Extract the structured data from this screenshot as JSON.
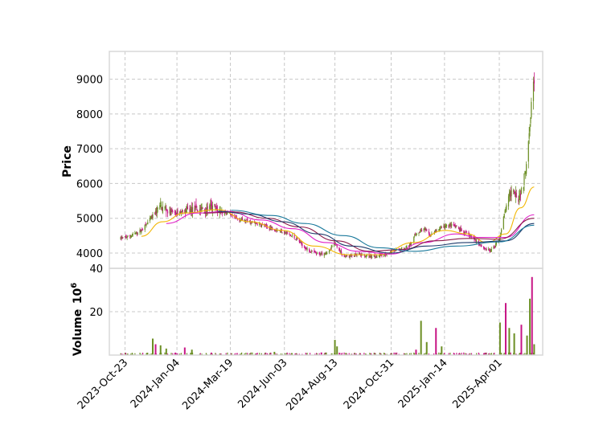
{
  "chart_data": {
    "type": "candlestick",
    "ylabel_price": "Price",
    "ylabel_volume": "Volume",
    "volume_scale_label": "10^6",
    "price_ylim": [
      3560,
      9800
    ],
    "price_yticks": [
      4000,
      5000,
      6000,
      7000,
      8000,
      9000
    ],
    "volume_ylim": [
      0,
      40
    ],
    "volume_yticks": [
      20,
      40
    ],
    "x_start": "2023-10-01",
    "x_end": "2025-06-01",
    "xticks": [
      "2023-Oct-23",
      "2024-Jan-04",
      "2024-Mar-19",
      "2024-Jun-03",
      "2024-Aug-13",
      "2024-Oct-31",
      "2025-Jan-14",
      "2025-Apr-01"
    ],
    "grid": true,
    "colors": {
      "up": "#6b8e23",
      "down": "#c71585",
      "ma_yellow": "#f2b705",
      "ma_magenta": "#e020c8",
      "ma_maroon": "#8b1a4a",
      "ma_navy": "#1f3a6b",
      "ma_teal": "#1b7a9c",
      "grid": "#c8c8c8",
      "frame": "#d8d8d8"
    },
    "price_path": [
      [
        "2023-10-17",
        4420
      ],
      [
        "2023-11-01",
        4500
      ],
      [
        "2023-11-15",
        4650
      ],
      [
        "2023-12-01",
        5050
      ],
      [
        "2023-12-10",
        5350
      ],
      [
        "2024-01-01",
        5150
      ],
      [
        "2024-01-15",
        5200
      ],
      [
        "2024-02-01",
        5250
      ],
      [
        "2024-02-20",
        5300
      ],
      [
        "2024-03-10",
        5200
      ],
      [
        "2024-03-25",
        5000
      ],
      [
        "2024-04-15",
        4900
      ],
      [
        "2024-05-01",
        4800
      ],
      [
        "2024-05-20",
        4700
      ],
      [
        "2024-06-03",
        4600
      ],
      [
        "2024-06-20",
        4400
      ],
      [
        "2024-07-05",
        4100
      ],
      [
        "2024-07-20",
        3950
      ],
      [
        "2024-08-05",
        4050
      ],
      [
        "2024-08-13",
        4300
      ],
      [
        "2024-08-25",
        3900
      ],
      [
        "2024-09-15",
        3950
      ],
      [
        "2024-10-01",
        3900
      ],
      [
        "2024-10-20",
        3950
      ],
      [
        "2024-11-05",
        4050
      ],
      [
        "2024-11-25",
        4200
      ],
      [
        "2024-12-05",
        4550
      ],
      [
        "2024-12-15",
        4700
      ],
      [
        "2024-12-25",
        4500
      ],
      [
        "2025-01-10",
        4750
      ],
      [
        "2025-01-25",
        4800
      ],
      [
        "2025-02-10",
        4600
      ],
      [
        "2025-02-25",
        4400
      ],
      [
        "2025-03-10",
        4150
      ],
      [
        "2025-03-20",
        4050
      ],
      [
        "2025-04-01",
        4400
      ],
      [
        "2025-04-10",
        5300
      ],
      [
        "2025-04-20",
        5900
      ],
      [
        "2025-04-28",
        5600
      ],
      [
        "2025-05-05",
        6000
      ],
      [
        "2025-05-10",
        6800
      ],
      [
        "2025-05-14",
        7800
      ],
      [
        "2025-05-18",
        8800
      ],
      [
        "2025-05-20",
        9000
      ]
    ],
    "moving_averages": [
      {
        "color_key": "ma_yellow",
        "points": [
          [
            "2023-11-15",
            4480
          ],
          [
            "2023-12-15",
            4900
          ],
          [
            "2024-01-15",
            5150
          ],
          [
            "2024-03-01",
            5250
          ],
          [
            "2024-04-15",
            4900
          ],
          [
            "2024-06-01",
            4650
          ],
          [
            "2024-07-15",
            4200
          ],
          [
            "2024-09-01",
            3950
          ],
          [
            "2024-10-15",
            3950
          ],
          [
            "2024-12-01",
            4300
          ],
          [
            "2025-01-15",
            4650
          ],
          [
            "2025-02-15",
            4550
          ],
          [
            "2025-03-15",
            4300
          ],
          [
            "2025-04-10",
            4550
          ],
          [
            "2025-05-01",
            5300
          ],
          [
            "2025-05-20",
            5900
          ]
        ]
      },
      {
        "color_key": "ma_magenta",
        "points": [
          [
            "2023-12-20",
            4850
          ],
          [
            "2024-02-01",
            5150
          ],
          [
            "2024-03-15",
            5200
          ],
          [
            "2024-05-01",
            4950
          ],
          [
            "2024-06-15",
            4700
          ],
          [
            "2024-08-01",
            4300
          ],
          [
            "2024-09-15",
            4050
          ],
          [
            "2024-10-31",
            3970
          ],
          [
            "2024-12-15",
            4300
          ],
          [
            "2025-01-31",
            4550
          ],
          [
            "2025-03-01",
            4450
          ],
          [
            "2025-04-10",
            4450
          ],
          [
            "2025-05-20",
            5100
          ]
        ]
      },
      {
        "color_key": "ma_maroon",
        "points": [
          [
            "2024-02-10",
            5150
          ],
          [
            "2024-03-25",
            5180
          ],
          [
            "2024-05-10",
            5000
          ],
          [
            "2024-06-25",
            4750
          ],
          [
            "2024-08-15",
            4350
          ],
          [
            "2024-10-01",
            4050
          ],
          [
            "2024-11-15",
            4100
          ],
          [
            "2024-12-31",
            4350
          ],
          [
            "2025-02-15",
            4420
          ],
          [
            "2025-04-01",
            4400
          ],
          [
            "2025-05-20",
            5000
          ]
        ]
      },
      {
        "color_key": "ma_navy",
        "points": [
          [
            "2024-03-01",
            5200
          ],
          [
            "2024-04-15",
            5120
          ],
          [
            "2024-06-01",
            4900
          ],
          [
            "2024-07-20",
            4550
          ],
          [
            "2024-09-05",
            4200
          ],
          [
            "2024-10-31",
            4000
          ],
          [
            "2024-12-20",
            4200
          ],
          [
            "2025-02-15",
            4300
          ],
          [
            "2025-04-10",
            4350
          ],
          [
            "2025-05-20",
            4850
          ]
        ]
      },
      {
        "color_key": "ma_teal",
        "points": [
          [
            "2024-03-20",
            5230
          ],
          [
            "2024-05-15",
            5080
          ],
          [
            "2024-07-01",
            4850
          ],
          [
            "2024-08-25",
            4500
          ],
          [
            "2024-10-15",
            4150
          ],
          [
            "2024-12-01",
            4050
          ],
          [
            "2025-01-31",
            4200
          ],
          [
            "2025-04-01",
            4320
          ],
          [
            "2025-05-20",
            4800
          ]
        ]
      }
    ],
    "volume_spikes": [
      [
        "2023-12-01",
        7.6
      ],
      [
        "2023-12-05",
        5.0
      ],
      [
        "2023-12-12",
        4.5
      ],
      [
        "2023-12-20",
        3.0
      ],
      [
        "2024-01-15",
        3.5
      ],
      [
        "2024-01-25",
        2.5
      ],
      [
        "2024-05-20",
        1.5
      ],
      [
        "2024-07-25",
        1.2
      ],
      [
        "2024-08-13",
        7.0
      ],
      [
        "2024-08-16",
        4.0
      ],
      [
        "2024-12-05",
        2.5
      ],
      [
        "2024-12-12",
        15.8
      ],
      [
        "2024-12-20",
        6.0
      ],
      [
        "2025-01-02",
        12.5
      ],
      [
        "2025-01-10",
        4.0
      ],
      [
        "2025-04-02",
        15.0
      ],
      [
        "2025-04-10",
        24.0
      ],
      [
        "2025-04-15",
        12.5
      ],
      [
        "2025-04-22",
        10.0
      ],
      [
        "2025-05-02",
        14.0
      ],
      [
        "2025-05-10",
        9.0
      ],
      [
        "2025-05-14",
        26.0
      ],
      [
        "2025-05-17",
        36.0
      ],
      [
        "2025-05-20",
        5.0
      ]
    ]
  }
}
